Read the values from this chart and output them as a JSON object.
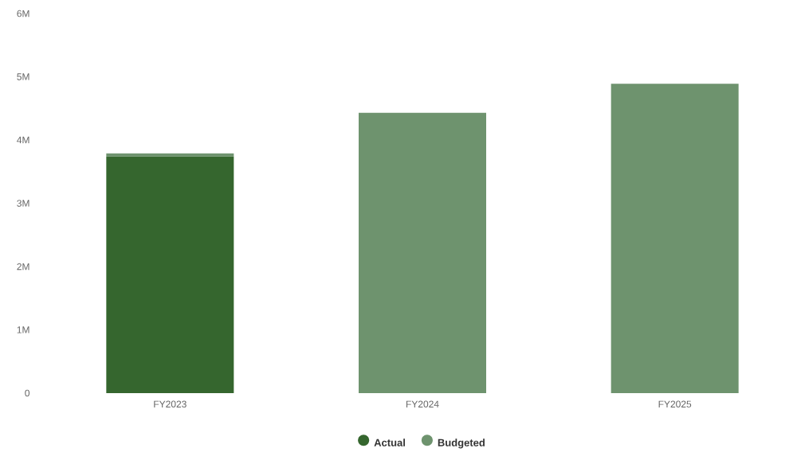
{
  "chart_data": {
    "type": "bar",
    "stacked": true,
    "categories": [
      "FY2023",
      "FY2024",
      "FY2025"
    ],
    "series": [
      {
        "name": "Actual",
        "color": "#35662e",
        "values": [
          3.74,
          null,
          null
        ]
      },
      {
        "name": "Budgeted",
        "color": "#6e936e",
        "values": [
          0.05,
          4.43,
          4.89
        ]
      }
    ],
    "ylim": [
      0,
      6
    ],
    "yticks": [
      {
        "value": 0,
        "label": "0"
      },
      {
        "value": 1,
        "label": "1M"
      },
      {
        "value": 2,
        "label": "2M"
      },
      {
        "value": 3,
        "label": "3M"
      },
      {
        "value": 4,
        "label": "4M"
      },
      {
        "value": 5,
        "label": "5M"
      },
      {
        "value": 6,
        "label": "6M"
      }
    ],
    "grid": false,
    "legend": "bottom"
  }
}
